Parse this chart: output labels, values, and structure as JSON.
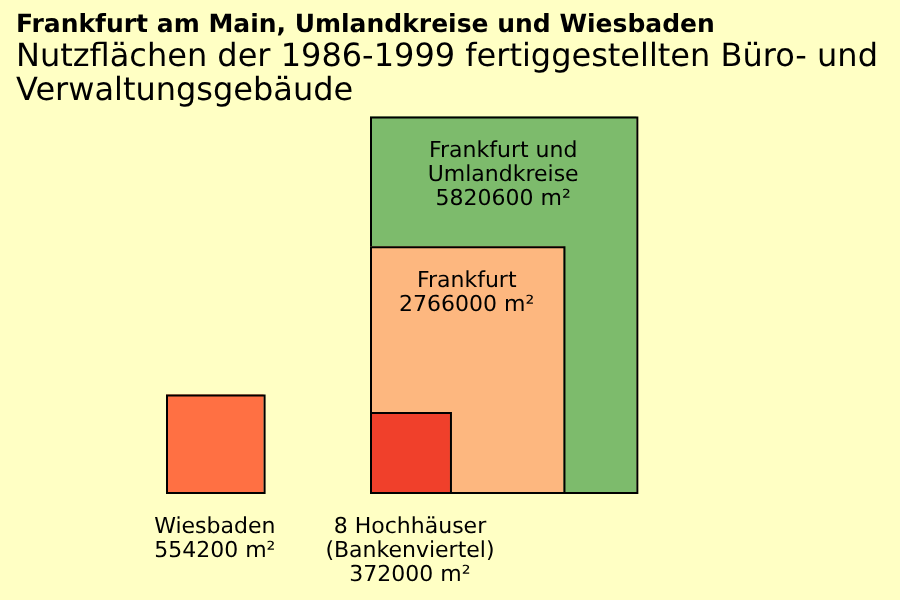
{
  "chart_data": {
    "type": "other",
    "title": "Frankfurt am Main, Umlandkreise und Wiesbaden",
    "subtitle": "Nutzflächen der 1986-1999 fertiggestellten Büro- und Verwaltungsgebäude",
    "categories": [
      "Frankfurt und Umlandkreise",
      "Frankfurt",
      "8 Hochhäuser (Bankenviertel)",
      "Wiesbaden"
    ],
    "values": [
      5820600,
      2766000,
      372000,
      554200
    ],
    "value_labels": [
      "5820600 m²",
      "2766000 m²",
      "372000 m²",
      "554200 m²"
    ],
    "colors": [
      "#7dbb6c",
      "#fdb77f",
      "#f0402b",
      "#ff7043"
    ]
  }
}
